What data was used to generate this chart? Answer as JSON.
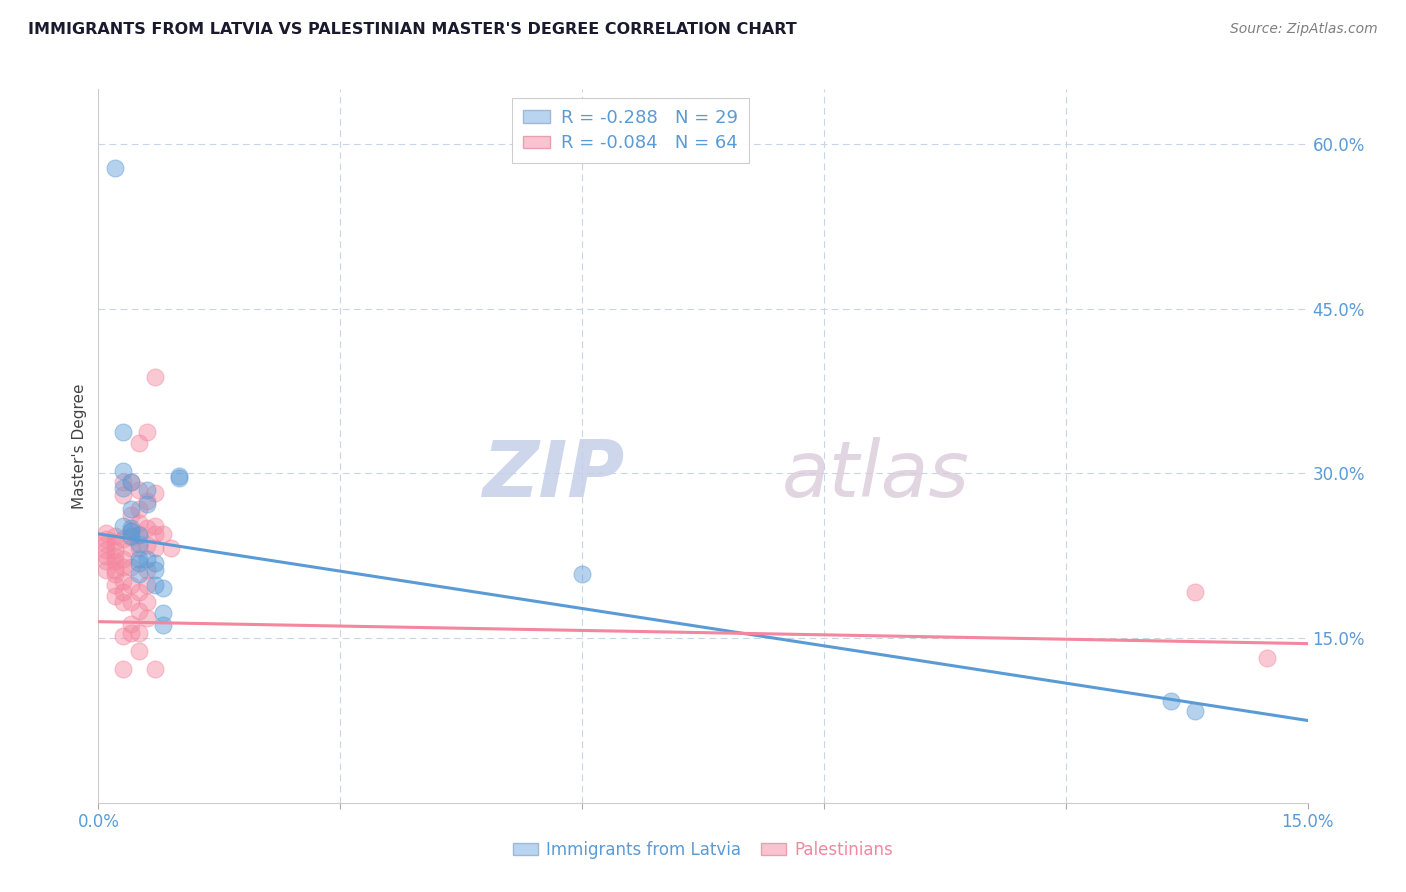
{
  "title": "IMMIGRANTS FROM LATVIA VS PALESTINIAN MASTER'S DEGREE CORRELATION CHART",
  "source": "Source: ZipAtlas.com",
  "ylabel": "Master's Degree",
  "xlim": [
    0.0,
    0.15
  ],
  "ylim": [
    0.0,
    0.65
  ],
  "yticks_right": [
    0.15,
    0.3,
    0.45,
    0.6
  ],
  "ytick_labels_right": [
    "15.0%",
    "30.0%",
    "45.0%",
    "60.0%"
  ],
  "watermark_zip": "ZIP",
  "watermark_atlas": "atlas",
  "legend_r_blue": "R = -0.288",
  "legend_n_blue": "N = 29",
  "legend_r_pink": "R = -0.084",
  "legend_n_pink": "N = 64",
  "legend_labels_bottom": [
    "Immigrants from Latvia",
    "Palestinians"
  ],
  "blue_color": "#5b9bd5",
  "pink_color": "#f4869e",
  "blue_scatter": [
    [
      0.002,
      0.578
    ],
    [
      0.003,
      0.338
    ],
    [
      0.003,
      0.302
    ],
    [
      0.003,
      0.287
    ],
    [
      0.003,
      0.252
    ],
    [
      0.004,
      0.292
    ],
    [
      0.004,
      0.268
    ],
    [
      0.004,
      0.25
    ],
    [
      0.004,
      0.248
    ],
    [
      0.004,
      0.243
    ],
    [
      0.005,
      0.244
    ],
    [
      0.005,
      0.236
    ],
    [
      0.005,
      0.222
    ],
    [
      0.005,
      0.218
    ],
    [
      0.005,
      0.208
    ],
    [
      0.006,
      0.285
    ],
    [
      0.006,
      0.272
    ],
    [
      0.006,
      0.222
    ],
    [
      0.007,
      0.218
    ],
    [
      0.007,
      0.212
    ],
    [
      0.007,
      0.198
    ],
    [
      0.008,
      0.196
    ],
    [
      0.008,
      0.173
    ],
    [
      0.008,
      0.162
    ],
    [
      0.01,
      0.298
    ],
    [
      0.01,
      0.296
    ],
    [
      0.06,
      0.208
    ],
    [
      0.133,
      0.093
    ],
    [
      0.136,
      0.084
    ]
  ],
  "pink_scatter": [
    [
      0.001,
      0.246
    ],
    [
      0.001,
      0.24
    ],
    [
      0.001,
      0.236
    ],
    [
      0.001,
      0.23
    ],
    [
      0.001,
      0.225
    ],
    [
      0.001,
      0.22
    ],
    [
      0.001,
      0.212
    ],
    [
      0.002,
      0.243
    ],
    [
      0.002,
      0.238
    ],
    [
      0.002,
      0.23
    ],
    [
      0.002,
      0.225
    ],
    [
      0.002,
      0.22
    ],
    [
      0.002,
      0.212
    ],
    [
      0.002,
      0.208
    ],
    [
      0.002,
      0.198
    ],
    [
      0.002,
      0.188
    ],
    [
      0.003,
      0.292
    ],
    [
      0.003,
      0.28
    ],
    [
      0.003,
      0.24
    ],
    [
      0.003,
      0.222
    ],
    [
      0.003,
      0.215
    ],
    [
      0.003,
      0.202
    ],
    [
      0.003,
      0.192
    ],
    [
      0.003,
      0.183
    ],
    [
      0.003,
      0.152
    ],
    [
      0.003,
      0.122
    ],
    [
      0.004,
      0.292
    ],
    [
      0.004,
      0.262
    ],
    [
      0.004,
      0.248
    ],
    [
      0.004,
      0.242
    ],
    [
      0.004,
      0.232
    ],
    [
      0.004,
      0.215
    ],
    [
      0.004,
      0.198
    ],
    [
      0.004,
      0.183
    ],
    [
      0.004,
      0.163
    ],
    [
      0.004,
      0.155
    ],
    [
      0.005,
      0.328
    ],
    [
      0.005,
      0.285
    ],
    [
      0.005,
      0.268
    ],
    [
      0.005,
      0.255
    ],
    [
      0.005,
      0.245
    ],
    [
      0.005,
      0.232
    ],
    [
      0.005,
      0.192
    ],
    [
      0.005,
      0.175
    ],
    [
      0.005,
      0.155
    ],
    [
      0.005,
      0.138
    ],
    [
      0.006,
      0.338
    ],
    [
      0.006,
      0.275
    ],
    [
      0.006,
      0.25
    ],
    [
      0.006,
      0.235
    ],
    [
      0.006,
      0.212
    ],
    [
      0.006,
      0.198
    ],
    [
      0.006,
      0.183
    ],
    [
      0.006,
      0.168
    ],
    [
      0.007,
      0.388
    ],
    [
      0.007,
      0.282
    ],
    [
      0.007,
      0.252
    ],
    [
      0.007,
      0.245
    ],
    [
      0.007,
      0.232
    ],
    [
      0.007,
      0.122
    ],
    [
      0.008,
      0.245
    ],
    [
      0.009,
      0.232
    ],
    [
      0.136,
      0.192
    ],
    [
      0.145,
      0.132
    ]
  ],
  "blue_line_x": [
    0.0,
    0.15
  ],
  "blue_line_y": [
    0.245,
    0.075
  ],
  "pink_line_x": [
    0.0,
    0.15
  ],
  "pink_line_y": [
    0.165,
    0.145
  ],
  "grid_color": "#c8d4e8",
  "title_color": "#1a1a2e",
  "source_color": "#808080"
}
